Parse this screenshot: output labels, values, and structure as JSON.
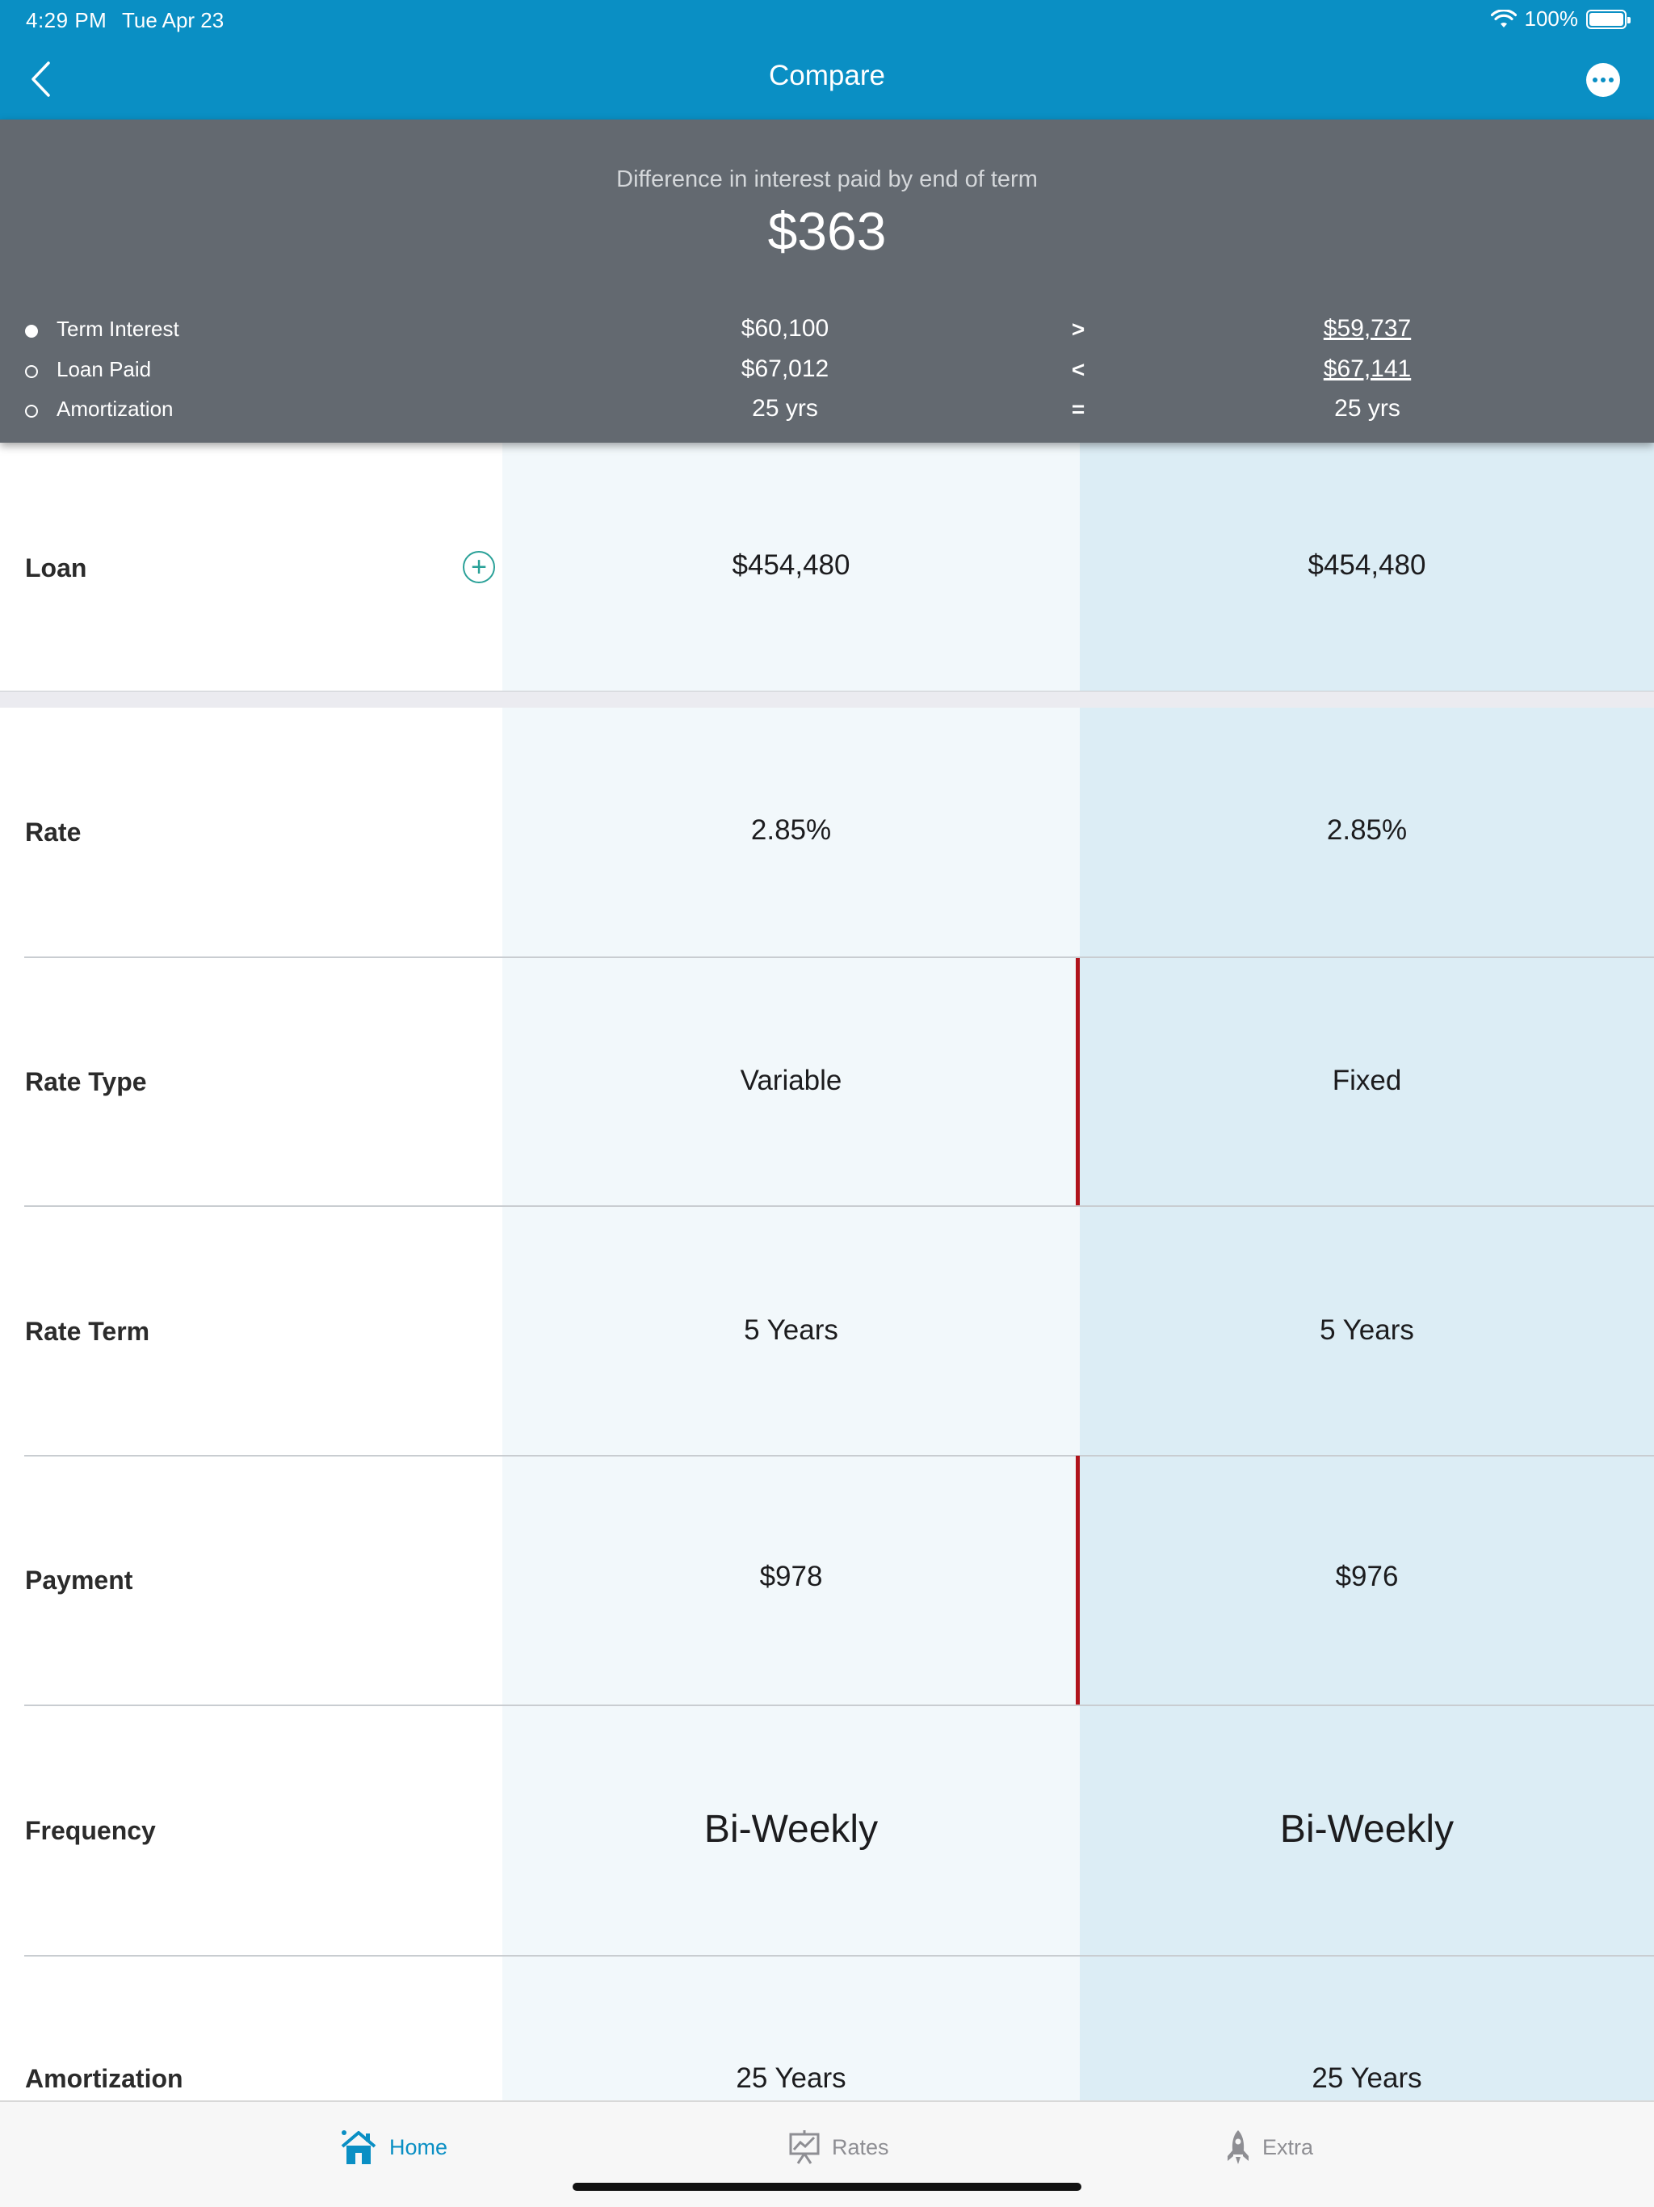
{
  "status_bar": {
    "time": "4:29 PM",
    "date": "Tue Apr 23",
    "battery": "100%"
  },
  "nav": {
    "title": "Compare"
  },
  "summary": {
    "diff_label": "Difference in interest paid by end of term",
    "diff_value": "$363",
    "rows": [
      {
        "label": "Term Interest",
        "selected": true,
        "left": "$60,100",
        "compare": ">",
        "right": "$59,737"
      },
      {
        "label": "Loan Paid",
        "selected": false,
        "left": "$67,012",
        "compare": "<",
        "right": "$67,141"
      },
      {
        "label": "Amortization",
        "selected": false,
        "left": "25 yrs",
        "compare": "=",
        "right": "25 yrs"
      }
    ]
  },
  "table": {
    "rows": [
      {
        "label": "Loan",
        "left": "$454,480",
        "right": "$454,480"
      },
      {
        "label": "Rate",
        "left": "2.85%",
        "right": "2.85%"
      },
      {
        "label": "Rate Type",
        "left": "Variable",
        "right": "Fixed",
        "differs": true
      },
      {
        "label": "Rate Term",
        "left": "5 Years",
        "right": "5 Years"
      },
      {
        "label": "Payment",
        "left": "$978",
        "right": "$976",
        "differs": true
      },
      {
        "label": "Frequency",
        "left": "Bi-Weekly",
        "right": "Bi-Weekly"
      },
      {
        "label": "Amortization",
        "left": "25 Years",
        "right": "25 Years"
      }
    ],
    "loan_add_icon": "plus-circle-icon",
    "diff_marker_color": "#b0141c"
  },
  "tabs": [
    {
      "label": "Home",
      "icon": "home-icon",
      "active": true
    },
    {
      "label": "Rates",
      "icon": "chart-board-icon",
      "active": false
    },
    {
      "label": "Extra",
      "icon": "rocket-icon",
      "active": false
    }
  ],
  "colors": {
    "accent": "#0a8fc4",
    "summary_bg": "#636970",
    "col_a_bg": "#f2f8fb",
    "col_b_bg": "#dcedf5"
  }
}
